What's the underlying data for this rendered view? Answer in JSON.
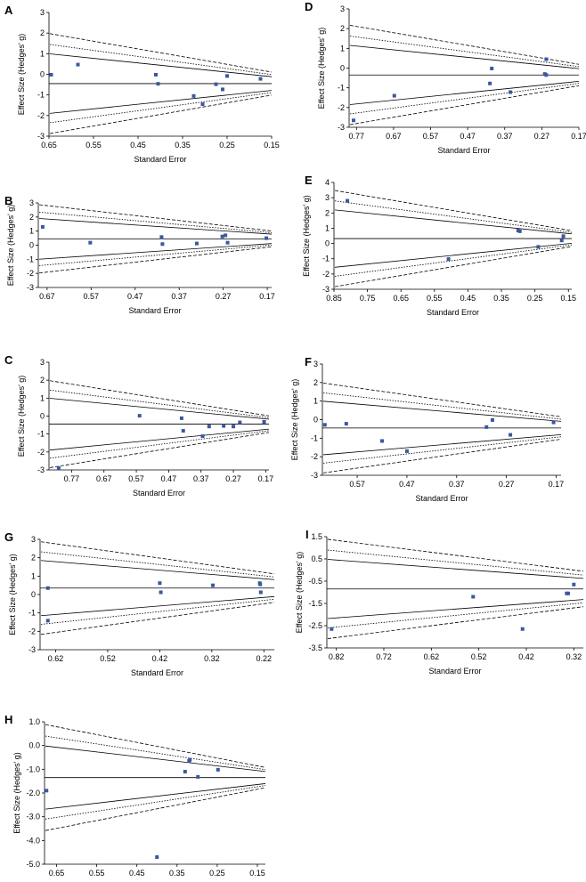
{
  "figure": {
    "accent_color": "#3a58a0",
    "line_color": "#000000"
  },
  "chart_data": [
    {
      "panel": "A",
      "type": "scatter",
      "xlabel": "Standard Error",
      "ylabel": "Effect Size (Hedges' g)",
      "x_ticks": [
        0.65,
        0.55,
        0.45,
        0.35,
        0.25,
        0.15
      ],
      "y_ticks": [
        3,
        2,
        1,
        0,
        -1,
        -2,
        -3
      ],
      "xlim": [
        0.65,
        0.15
      ],
      "ylim": [
        -3,
        3
      ],
      "pooled_effect": -0.45,
      "points": [
        [
          0.645,
          -0.02
        ],
        [
          0.585,
          0.47
        ],
        [
          0.41,
          -0.02
        ],
        [
          0.405,
          -0.46
        ],
        [
          0.325,
          -1.05
        ],
        [
          0.305,
          -1.45
        ],
        [
          0.275,
          -0.48
        ],
        [
          0.26,
          -0.73
        ],
        [
          0.25,
          -0.08
        ],
        [
          0.175,
          -0.22
        ]
      ]
    },
    {
      "panel": "B",
      "type": "scatter",
      "xlabel": "Standard Error",
      "ylabel": "Effect Size (Hedges' g)",
      "x_ticks": [
        0.67,
        0.57,
        0.47,
        0.37,
        0.27,
        0.17
      ],
      "y_ticks": [
        3,
        2,
        1,
        0,
        -1,
        -2,
        -3
      ],
      "xlim": [
        0.69,
        0.16
      ],
      "ylim": [
        -3,
        3
      ],
      "pooled_effect": 0.45,
      "points": [
        [
          0.68,
          1.3
        ],
        [
          0.572,
          0.18
        ],
        [
          0.41,
          0.58
        ],
        [
          0.408,
          0.08
        ],
        [
          0.33,
          0.12
        ],
        [
          0.272,
          0.62
        ],
        [
          0.265,
          0.7
        ],
        [
          0.26,
          0.18
        ],
        [
          0.172,
          0.5
        ]
      ]
    },
    {
      "panel": "C",
      "type": "scatter",
      "xlabel": "Standard Error",
      "ylabel": "Effect Size (Hedges' g)",
      "x_ticks": [
        0.77,
        0.67,
        0.57,
        0.47,
        0.37,
        0.27,
        0.17
      ],
      "y_ticks": [
        3,
        2,
        1,
        0,
        -1,
        -2,
        -3
      ],
      "xlim": [
        0.84,
        0.16
      ],
      "ylim": [
        -3,
        3
      ],
      "pooled_effect": -0.45,
      "points": [
        [
          0.81,
          -2.9
        ],
        [
          0.56,
          0.02
        ],
        [
          0.43,
          -0.12
        ],
        [
          0.425,
          -0.82
        ],
        [
          0.365,
          -1.12
        ],
        [
          0.345,
          -0.58
        ],
        [
          0.3,
          -0.55
        ],
        [
          0.27,
          -0.58
        ],
        [
          0.25,
          -0.35
        ],
        [
          0.175,
          -0.32
        ]
      ]
    },
    {
      "panel": "D",
      "type": "scatter",
      "xlabel": "Standard Error",
      "ylabel": "Effect Size (Hedges' g)",
      "x_ticks": [
        0.77,
        0.67,
        0.57,
        0.47,
        0.37,
        0.27,
        0.17
      ],
      "y_ticks": [
        3,
        2,
        1,
        0,
        -1,
        -2,
        -3
      ],
      "xlim": [
        0.79,
        0.17
      ],
      "ylim": [
        -3,
        3
      ],
      "pooled_effect": -0.35,
      "points": [
        [
          0.778,
          -2.65
        ],
        [
          0.668,
          -1.4
        ],
        [
          0.405,
          -0.02
        ],
        [
          0.41,
          -0.78
        ],
        [
          0.355,
          -1.22
        ],
        [
          0.258,
          0.45
        ],
        [
          0.262,
          -0.3
        ],
        [
          0.258,
          -0.35
        ]
      ]
    },
    {
      "panel": "E",
      "type": "scatter",
      "xlabel": "Standard Error",
      "ylabel": "Effect Size (Hedges' g)",
      "x_ticks": [
        0.85,
        0.75,
        0.65,
        0.55,
        0.45,
        0.35,
        0.25,
        0.15
      ],
      "y_ticks": [
        4,
        3,
        2,
        1,
        0,
        -1,
        -2,
        -3
      ],
      "xlim": [
        0.85,
        0.14
      ],
      "ylim": [
        -3,
        4
      ],
      "pooled_effect": 0.32,
      "points": [
        [
          0.81,
          2.8
        ],
        [
          0.508,
          -1.02
        ],
        [
          0.3,
          0.85
        ],
        [
          0.295,
          0.8
        ],
        [
          0.24,
          -0.22
        ],
        [
          0.17,
          0.2
        ],
        [
          0.165,
          0.48
        ]
      ]
    },
    {
      "panel": "F",
      "type": "scatter",
      "xlabel": "Standard Error",
      "ylabel": "Effect Size (Hedges' g)",
      "x_ticks": [
        0.57,
        0.47,
        0.37,
        0.27,
        0.17
      ],
      "y_ticks": [
        3,
        2,
        1,
        0,
        -1,
        -2,
        -3
      ],
      "xlim": [
        0.64,
        0.16
      ],
      "ylim": [
        -3,
        3
      ],
      "pooled_effect": -0.45,
      "points": [
        [
          0.635,
          -0.28
        ],
        [
          0.592,
          -0.22
        ],
        [
          0.52,
          -1.15
        ],
        [
          0.47,
          -1.7
        ],
        [
          0.31,
          -0.4
        ],
        [
          0.298,
          -0.02
        ],
        [
          0.262,
          -0.82
        ],
        [
          0.175,
          -0.15
        ]
      ]
    },
    {
      "panel": "G",
      "type": "scatter",
      "xlabel": "Standard Error",
      "ylabel": "Effect Size (Hedges' g)",
      "x_ticks": [
        0.62,
        0.52,
        0.42,
        0.32,
        0.22
      ],
      "y_ticks": [
        3,
        2,
        1,
        0,
        -1,
        -2,
        -3
      ],
      "xlim": [
        0.65,
        0.2
      ],
      "ylim": [
        -3,
        3
      ],
      "pooled_effect": 0.35,
      "points": [
        [
          0.635,
          0.35
        ],
        [
          0.635,
          -1.42
        ],
        [
          0.42,
          0.62
        ],
        [
          0.418,
          0.12
        ],
        [
          0.318,
          0.5
        ],
        [
          0.228,
          0.62
        ],
        [
          0.227,
          0.55
        ],
        [
          0.226,
          0.12
        ]
      ]
    },
    {
      "panel": "I",
      "type": "scatter",
      "xlabel": "Standard Error",
      "ylabel": "Effect Size (Hedges' g)",
      "x_ticks": [
        0.82,
        0.72,
        0.62,
        0.52,
        0.42,
        0.32
      ],
      "y_ticks": [
        1.5,
        0.5,
        -0.5,
        -1.5,
        -2.5,
        -3.5
      ],
      "xlim": [
        0.84,
        0.3
      ],
      "ylim": [
        -3.5,
        1.5
      ],
      "pooled_effect": -0.85,
      "points": [
        [
          0.83,
          -2.65
        ],
        [
          0.532,
          -1.2
        ],
        [
          0.428,
          -2.65
        ],
        [
          0.335,
          -1.05
        ],
        [
          0.332,
          -1.05
        ],
        [
          0.32,
          -0.65
        ]
      ]
    },
    {
      "panel": "H",
      "type": "scatter",
      "xlabel": "Standard Error",
      "ylabel": "Effect Size (Hedges' g)",
      "x_ticks": [
        0.65,
        0.55,
        0.45,
        0.35,
        0.25,
        0.15
      ],
      "y_ticks": [
        "1.0",
        "0.0",
        "-1.0",
        "-2.0",
        "-3.0",
        "-4.0",
        "-5.0"
      ],
      "xlim": [
        0.68,
        0.13
      ],
      "ylim": [
        -5.0,
        1.0
      ],
      "pooled_effect": -1.35,
      "points": [
        [
          0.675,
          -1.9
        ],
        [
          0.4,
          -4.7
        ],
        [
          0.33,
          -1.1
        ],
        [
          0.32,
          -0.65
        ],
        [
          0.318,
          -0.6
        ],
        [
          0.298,
          -1.32
        ],
        [
          0.248,
          -1.02
        ]
      ]
    }
  ]
}
